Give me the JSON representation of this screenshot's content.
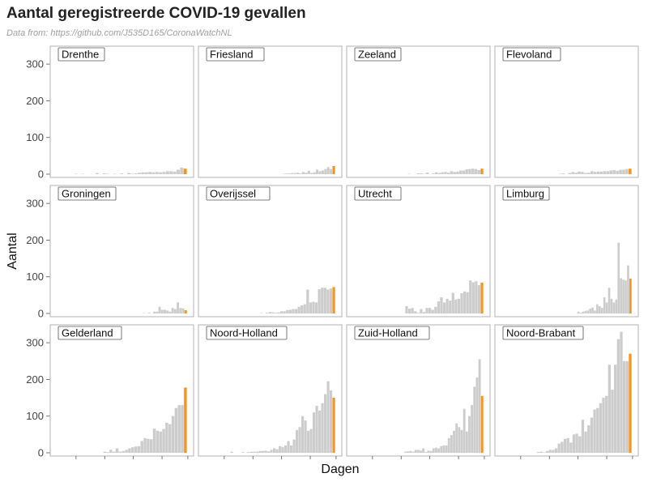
{
  "chart_data": {
    "type": "bar",
    "title": "Aantal geregistreerde COVID-19 gevallen",
    "subtitle": "Data from: https://github.com/J535D165/CoronaWatchNL",
    "xlabel": "Dagen",
    "ylabel": "Aantal",
    "ylim": [
      0,
      340
    ],
    "yticks": [
      0,
      100,
      200,
      300
    ],
    "grid": false,
    "colors": {
      "bar": "#cccccc",
      "last_bar": "#f7931e",
      "panel_border": "#b3b3b3",
      "label_border": "#555555"
    },
    "facets": [
      {
        "name": "Drenthe",
        "values": [
          0,
          0,
          0,
          0,
          0,
          1,
          0,
          1,
          0,
          0,
          0,
          3,
          0,
          2,
          1,
          0,
          1,
          0,
          2,
          0,
          3,
          1,
          2,
          4,
          5,
          5,
          6,
          5,
          6,
          5,
          6,
          8,
          8,
          7,
          12,
          18,
          15
        ]
      },
      {
        "name": "Friesland",
        "values": [
          0,
          0,
          0,
          0,
          0,
          0,
          0,
          0,
          0,
          0,
          0,
          0,
          0,
          0,
          0,
          0,
          0,
          0,
          0,
          0,
          0,
          0,
          0,
          0,
          0,
          0,
          0,
          0,
          1,
          2,
          2,
          3,
          3,
          4,
          2,
          6,
          4,
          9,
          3,
          5,
          12,
          8,
          10,
          14,
          19,
          14,
          22
        ]
      },
      {
        "name": "Zeeland",
        "values": [
          0,
          0,
          0,
          0,
          0,
          0,
          0,
          0,
          0,
          0,
          0,
          0,
          0,
          0,
          0,
          0,
          0,
          0,
          1,
          0,
          0,
          2,
          2,
          1,
          4,
          0,
          2,
          5,
          3,
          5,
          6,
          4,
          8,
          6,
          7,
          10,
          10,
          13,
          14,
          15,
          14,
          11,
          15
        ]
      },
      {
        "name": "Flevoland",
        "values": [
          0,
          0,
          0,
          0,
          0,
          0,
          0,
          0,
          0,
          0,
          0,
          0,
          0,
          0,
          0,
          0,
          0,
          0,
          1,
          2,
          0,
          3,
          6,
          4,
          7,
          6,
          3,
          4,
          8,
          6,
          7,
          7,
          8,
          8,
          10,
          11,
          9,
          12,
          12,
          14,
          15
        ]
      },
      {
        "name": "Groningen",
        "values": [
          0,
          0,
          0,
          0,
          0,
          0,
          0,
          0,
          0,
          0,
          0,
          0,
          0,
          0,
          0,
          0,
          0,
          0,
          0,
          0,
          0,
          0,
          0,
          0,
          0,
          0,
          0,
          0,
          0,
          0,
          0,
          0,
          0,
          1,
          0,
          2,
          0,
          5,
          5,
          18,
          10,
          10,
          8,
          5,
          15,
          12,
          30,
          15,
          14,
          9
        ]
      },
      {
        "name": "Overijssel",
        "values": [
          0,
          0,
          0,
          0,
          0,
          0,
          0,
          0,
          0,
          0,
          0,
          0,
          0,
          0,
          0,
          0,
          0,
          0,
          0,
          1,
          0,
          2,
          4,
          3,
          2,
          3,
          6,
          6,
          9,
          10,
          12,
          12,
          18,
          22,
          25,
          65,
          30,
          32,
          30,
          66,
          70,
          70,
          65,
          68,
          72
        ]
      },
      {
        "name": "Utrecht",
        "values": [
          0,
          0,
          0,
          0,
          0,
          0,
          0,
          0,
          0,
          0,
          0,
          0,
          0,
          0,
          0,
          0,
          0,
          0,
          20,
          13,
          15,
          6,
          2,
          12,
          4,
          15,
          15,
          10,
          18,
          33,
          44,
          30,
          40,
          35,
          56,
          38,
          40,
          55,
          60,
          58,
          90,
          85,
          88,
          77,
          84
        ]
      },
      {
        "name": "Limburg",
        "values": [
          0,
          0,
          0,
          0,
          0,
          0,
          0,
          0,
          0,
          0,
          0,
          0,
          0,
          0,
          0,
          0,
          0,
          0,
          0,
          0,
          0,
          0,
          0,
          0,
          0,
          0,
          0,
          0,
          0,
          0,
          0,
          0,
          5,
          2,
          5,
          7,
          8,
          13,
          16,
          8,
          25,
          20,
          15,
          44,
          30,
          70,
          40,
          30,
          38,
          193,
          96,
          92,
          90,
          131,
          95
        ]
      },
      {
        "name": "Gelderland",
        "values": [
          0,
          0,
          0,
          0,
          0,
          0,
          0,
          0,
          0,
          0,
          0,
          0,
          0,
          0,
          0,
          3,
          2,
          8,
          3,
          12,
          3,
          5,
          8,
          12,
          15,
          17,
          18,
          32,
          40,
          38,
          37,
          66,
          60,
          58,
          65,
          82,
          78,
          100,
          122,
          130,
          130,
          178
        ]
      },
      {
        "name": "Noord-Holland",
        "values": [
          0,
          0,
          0,
          0,
          0,
          0,
          0,
          0,
          0,
          3,
          0,
          0,
          0,
          2,
          0,
          2,
          3,
          3,
          3,
          5,
          5,
          6,
          4,
          8,
          12,
          10,
          18,
          16,
          20,
          32,
          20,
          36,
          62,
          70,
          100,
          88,
          60,
          65,
          110,
          128,
          115,
          135,
          160,
          195,
          170,
          150
        ]
      },
      {
        "name": "Zuid-Holland",
        "values": [
          0,
          0,
          0,
          0,
          0,
          0,
          0,
          0,
          0,
          0,
          0,
          0,
          0,
          0,
          0,
          0,
          0,
          0,
          0,
          0,
          3,
          4,
          5,
          3,
          8,
          8,
          6,
          12,
          2,
          6,
          5,
          12,
          14,
          12,
          18,
          20,
          20,
          40,
          48,
          60,
          80,
          70,
          62,
          120,
          58,
          100,
          130,
          180,
          205,
          255,
          155
        ]
      },
      {
        "name": "Noord-Brabant",
        "values": [
          0,
          0,
          0,
          0,
          0,
          0,
          0,
          0,
          0,
          0,
          0,
          0,
          2,
          3,
          1,
          5,
          8,
          8,
          12,
          25,
          30,
          38,
          40,
          28,
          50,
          52,
          45,
          90,
          58,
          75,
          96,
          118,
          122,
          135,
          150,
          155,
          240,
          172,
          240,
          310,
          330,
          250,
          250,
          270
        ]
      }
    ]
  }
}
